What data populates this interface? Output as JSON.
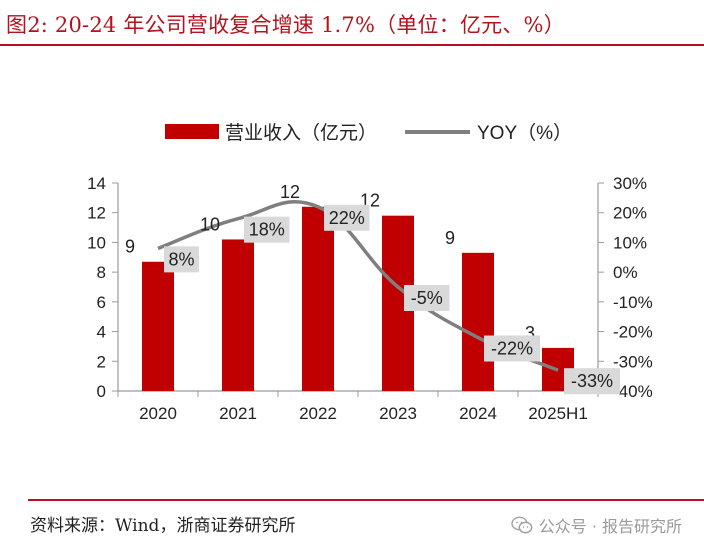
{
  "header": {
    "title": "图2:   20-24 年公司营收复合增速 1.7%（单位：亿元、%）"
  },
  "chart_data": {
    "type": "bar",
    "categories": [
      "2020",
      "2021",
      "2022",
      "2023",
      "2024",
      "2025H1"
    ],
    "series": [
      {
        "name": "营业收入（亿元）",
        "type": "bar",
        "axis": "left",
        "values": [
          8.7,
          10.2,
          12.4,
          11.8,
          9.3,
          2.9
        ],
        "labels": [
          "9",
          "10",
          "12",
          "12",
          "9",
          "3"
        ],
        "color": "#c00000"
      },
      {
        "name": "YOY（%）",
        "type": "line",
        "axis": "right",
        "values": [
          8,
          18,
          22,
          -5,
          -22,
          -33
        ],
        "labels": [
          "8%",
          "18%",
          "22%",
          "-5%",
          "-22%",
          "-33%"
        ],
        "color": "#7f7f7f"
      }
    ],
    "y_left": {
      "min": 0,
      "max": 14,
      "ticks": [
        "0",
        "2",
        "4",
        "6",
        "8",
        "10",
        "12",
        "14"
      ]
    },
    "y_right": {
      "min": -40,
      "max": 30,
      "ticks": [
        "-40%",
        "-30%",
        "-20%",
        "-10%",
        "0%",
        "10%",
        "20%",
        "30%"
      ]
    },
    "legend_position": "top-center"
  },
  "footer": {
    "source": "资料来源：Wind，浙商证券研究所",
    "watermark": "公众号 · 报告研究所",
    "watermark_icon": "wechat-icon"
  },
  "colors": {
    "accent": "#b3121f",
    "bar": "#c00000",
    "line": "#7f7f7f",
    "label_box": "#d9d9d9"
  }
}
